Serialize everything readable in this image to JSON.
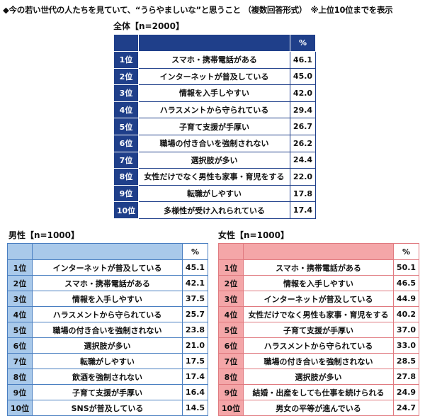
{
  "title": "◆今の若い世代の人たちを見ていて、“うらやましいな”と思うこと （複数回答形式）　※上位10位までを表示",
  "unit": "%",
  "colors": {
    "all": "#1f3f8a",
    "male": "#a9c9ea",
    "female": "#f4a6a8"
  },
  "tables": [
    {
      "caption": "全体【n=2000】",
      "rows": [
        [
          "1位",
          "スマホ・携帯電話がある",
          "46.1"
        ],
        [
          "2位",
          "インターネットが普及している",
          "45.0"
        ],
        [
          "3位",
          "情報を入手しやすい",
          "42.0"
        ],
        [
          "4位",
          "ハラスメントから守られている",
          "29.4"
        ],
        [
          "5位",
          "子育て支援が手厚い",
          "26.7"
        ],
        [
          "6位",
          "職場の付き合いを強制されない",
          "26.2"
        ],
        [
          "7位",
          "選択肢が多い",
          "24.4"
        ],
        [
          "8位",
          "女性だけでなく男性も家事・育児をする",
          "22.0"
        ],
        [
          "9位",
          "転職がしやすい",
          "17.8"
        ],
        [
          "10位",
          "多様性が受け入れられている",
          "17.4"
        ]
      ]
    },
    {
      "caption": "男性【n=1000】",
      "rows": [
        [
          "1位",
          "インターネットが普及している",
          "45.1"
        ],
        [
          "2位",
          "スマホ・携帯電話がある",
          "42.1"
        ],
        [
          "3位",
          "情報を入手しやすい",
          "37.5"
        ],
        [
          "4位",
          "ハラスメントから守られている",
          "25.7"
        ],
        [
          "5位",
          "職場の付き合いを強制されない",
          "23.8"
        ],
        [
          "6位",
          "選択肢が多い",
          "21.0"
        ],
        [
          "7位",
          "転職がしやすい",
          "17.5"
        ],
        [
          "8位",
          "飲酒を強制されない",
          "17.4"
        ],
        [
          "9位",
          "子育て支援が手厚い",
          "16.4"
        ],
        [
          "10位",
          "SNSが普及している",
          "14.5"
        ]
      ]
    },
    {
      "caption": "女性【n=1000】",
      "rows": [
        [
          "1位",
          "スマホ・携帯電話がある",
          "50.1"
        ],
        [
          "2位",
          "情報を入手しやすい",
          "46.5"
        ],
        [
          "3位",
          "インターネットが普及している",
          "44.9"
        ],
        [
          "4位",
          "女性だけでなく男性も家事・育児をする",
          "40.2"
        ],
        [
          "5位",
          "子育て支援が手厚い",
          "37.0"
        ],
        [
          "6位",
          "ハラスメントから守られている",
          "33.0"
        ],
        [
          "7位",
          "職場の付き合いを強制されない",
          "28.5"
        ],
        [
          "8位",
          "選択肢が多い",
          "27.8"
        ],
        [
          "9位",
          "結婚・出産をしても仕事を続けられる",
          "24.9"
        ],
        [
          "10位",
          "男女の平等が進んでいる",
          "24.7"
        ]
      ]
    }
  ]
}
